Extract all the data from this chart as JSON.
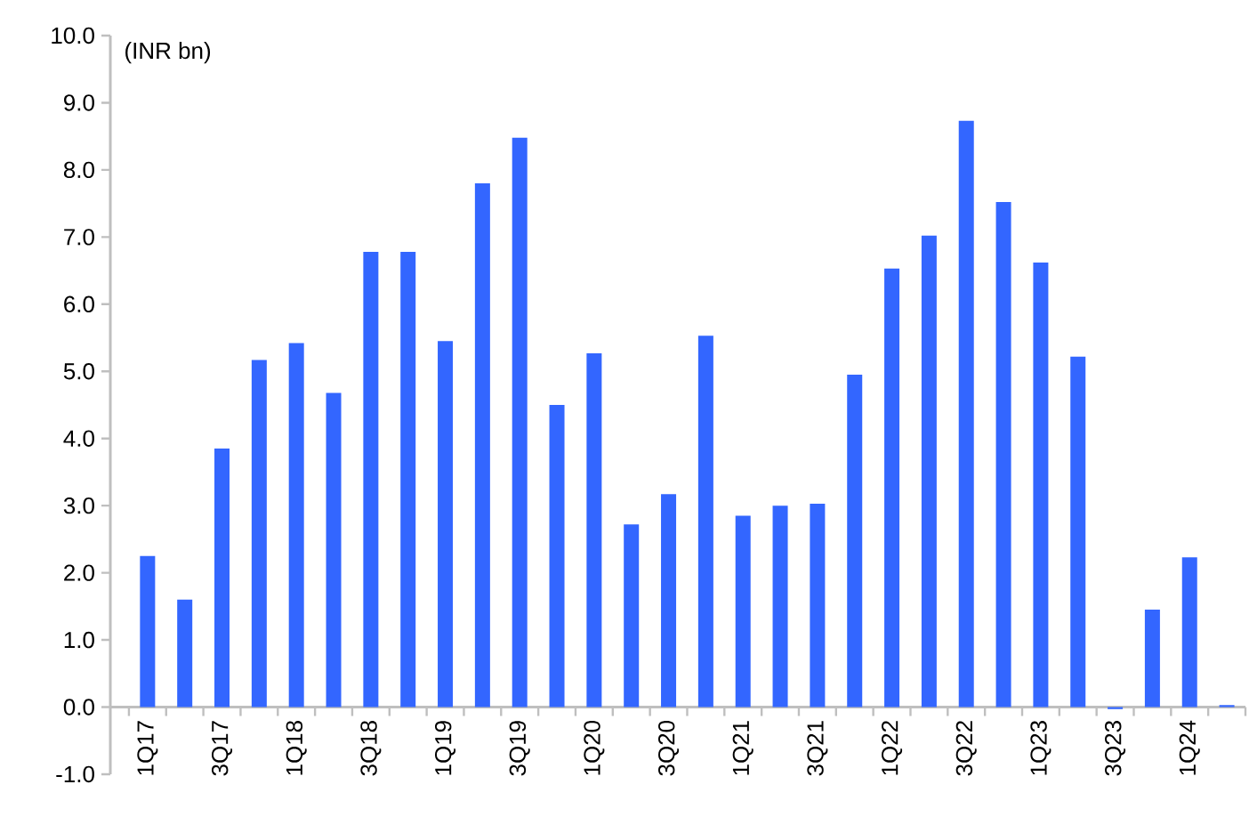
{
  "chart_data": {
    "type": "bar",
    "ylabel": "(INR bn)",
    "color": "#3366ff",
    "categories": [
      "1Q17",
      null,
      "3Q17",
      null,
      "1Q18",
      null,
      "3Q18",
      null,
      "1Q19",
      null,
      "3Q19",
      null,
      "1Q20",
      null,
      "3Q20",
      null,
      "1Q21",
      null,
      "3Q21",
      null,
      "1Q22",
      null,
      "3Q22",
      null,
      "1Q23",
      null,
      "3Q23",
      null,
      "1Q24",
      null
    ],
    "values": [
      2.25,
      1.6,
      3.85,
      5.17,
      5.42,
      4.68,
      6.78,
      6.78,
      5.45,
      7.8,
      8.48,
      4.5,
      5.27,
      2.72,
      3.17,
      5.53,
      2.85,
      3.0,
      3.03,
      4.95,
      6.53,
      7.02,
      8.73,
      7.52,
      6.62,
      5.22,
      -0.03,
      1.45,
      2.23,
      0.03
    ],
    "ylim": [
      -1,
      10
    ],
    "yticks": [
      {
        "value": -1,
        "label": "-1.0"
      },
      {
        "value": 0,
        "label": "0.0"
      },
      {
        "value": 1,
        "label": "1.0"
      },
      {
        "value": 2,
        "label": "2.0"
      },
      {
        "value": 3,
        "label": "3.0"
      },
      {
        "value": 4,
        "label": "4.0"
      },
      {
        "value": 5,
        "label": "5.0"
      },
      {
        "value": 6,
        "label": "6.0"
      },
      {
        "value": 7,
        "label": "7.0"
      },
      {
        "value": 8,
        "label": "8.0"
      },
      {
        "value": 9,
        "label": "9.0"
      },
      {
        "value": 10,
        "label": "10.0"
      }
    ],
    "grid": false
  }
}
